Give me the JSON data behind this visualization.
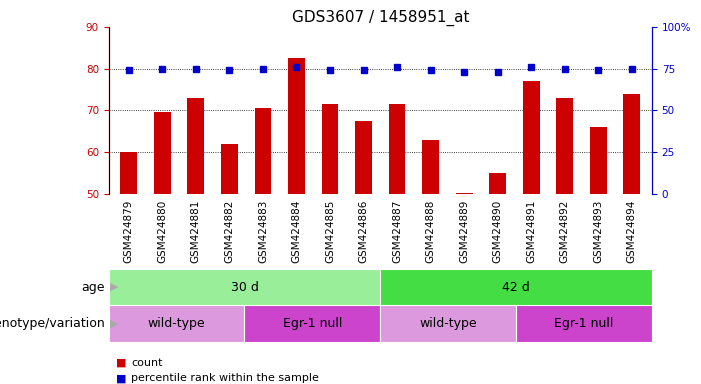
{
  "title": "GDS3607 / 1458951_at",
  "samples": [
    "GSM424879",
    "GSM424880",
    "GSM424881",
    "GSM424882",
    "GSM424883",
    "GSM424884",
    "GSM424885",
    "GSM424886",
    "GSM424887",
    "GSM424888",
    "GSM424889",
    "GSM424890",
    "GSM424891",
    "GSM424892",
    "GSM424893",
    "GSM424894"
  ],
  "counts": [
    60,
    69.5,
    73,
    62,
    70.5,
    82.5,
    71.5,
    67.5,
    71.5,
    63,
    50.2,
    55,
    77,
    73,
    66,
    74
  ],
  "percentiles": [
    74,
    75,
    75,
    74,
    75,
    76,
    74,
    74,
    76,
    74,
    73,
    73,
    76,
    75,
    74,
    75
  ],
  "ylim_left": [
    50,
    90
  ],
  "ylim_right": [
    0,
    100
  ],
  "yticks_left": [
    50,
    60,
    70,
    80,
    90
  ],
  "yticks_right": [
    0,
    25,
    50,
    75,
    100
  ],
  "bar_color": "#cc0000",
  "dot_color": "#0000cc",
  "background_color": "#ffffff",
  "age_groups": [
    {
      "label": "30 d",
      "start": 0,
      "end": 8,
      "color": "#99ee99"
    },
    {
      "label": "42 d",
      "start": 8,
      "end": 16,
      "color": "#44dd44"
    }
  ],
  "genotype_groups": [
    {
      "label": "wild-type",
      "start": 0,
      "end": 4,
      "color": "#dd99dd"
    },
    {
      "label": "Egr-1 null",
      "start": 4,
      "end": 8,
      "color": "#cc44cc"
    },
    {
      "label": "wild-type",
      "start": 8,
      "end": 12,
      "color": "#dd99dd"
    },
    {
      "label": "Egr-1 null",
      "start": 12,
      "end": 16,
      "color": "#cc44cc"
    }
  ],
  "tick_label_color_left": "#cc0000",
  "tick_label_color_right": "#0000cc",
  "xlabel_age": "age",
  "xlabel_genotype": "genotype/variation",
  "title_fontsize": 11,
  "tick_fontsize": 7.5,
  "band_fontsize": 9
}
